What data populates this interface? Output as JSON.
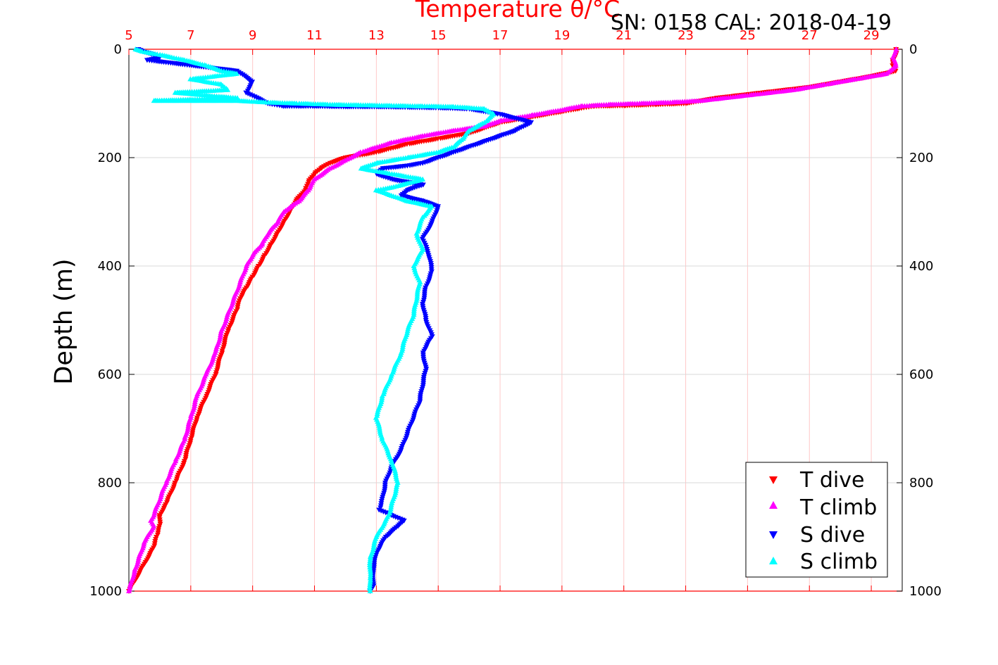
{
  "chart_data": {
    "type": "scatter",
    "title": "Temperature θ/°C",
    "caption": "SN: 0158  CAL: 2018-04-19",
    "ylabel": "Depth (m)",
    "xlim": [
      5,
      30
    ],
    "ylim": [
      0,
      1000
    ],
    "y_reversed": true,
    "x_ticks": [
      5,
      7,
      9,
      11,
      13,
      15,
      17,
      19,
      21,
      23,
      25,
      27,
      29
    ],
    "x_tick_labels": [
      "5",
      "7",
      "9",
      "11",
      "13",
      "15",
      "17",
      "19",
      "21",
      "23",
      "25",
      "27",
      "29"
    ],
    "y_ticks": [
      0,
      200,
      400,
      600,
      800,
      1000
    ],
    "y_tick_labels": [
      "0",
      "200",
      "400",
      "600",
      "800",
      "1000"
    ],
    "grid": true,
    "legend_position": "bottom-right",
    "colors": {
      "axis_top": "#ff0000",
      "grid": "#d9d9d9",
      "grid_x": "#ffc8c8",
      "T dive": "#ff0000",
      "T climb": "#ff00ff",
      "S dive": "#0000ff",
      "S climb": "#00ffff"
    },
    "series": [
      {
        "name": "T dive",
        "marker": "triangle-down",
        "color": "#ff0000",
        "x": [
          29.8,
          29.8,
          29.7,
          29.7,
          29.8,
          29.0,
          28.0,
          27.0,
          25.5,
          24.0,
          23.0,
          22.0,
          21.0,
          20.0,
          19.5,
          19.0,
          18.0,
          17.0,
          16.5,
          16.0,
          15.0,
          14.0,
          13.0,
          12.0,
          11.5,
          11.2,
          11.0,
          10.8,
          10.7,
          10.4,
          10.2,
          10.0,
          9.8,
          9.6,
          9.4,
          9.2,
          9.0,
          8.8,
          8.6,
          8.5,
          8.2,
          8.0,
          7.8,
          7.5,
          7.2,
          7.0,
          6.8,
          6.5,
          6.2,
          6.0,
          6.0,
          5.9,
          5.8,
          5.5,
          5.2,
          5.0
        ],
        "y": [
          0,
          10,
          20,
          30,
          40,
          50,
          60,
          70,
          80,
          90,
          100,
          102,
          104,
          105,
          110,
          115,
          125,
          135,
          145,
          155,
          165,
          175,
          190,
          200,
          210,
          220,
          230,
          245,
          260,
          280,
          300,
          320,
          340,
          360,
          380,
          400,
          420,
          440,
          460,
          480,
          520,
          560,
          600,
          640,
          680,
          720,
          760,
          800,
          840,
          860,
          880,
          900,
          920,
          950,
          980,
          1000
        ]
      },
      {
        "name": "T climb",
        "marker": "triangle-up",
        "color": "#ff00ff",
        "x": [
          29.8,
          29.7,
          29.8,
          29.5,
          28.5,
          27.5,
          26.5,
          25.0,
          23.5,
          22.5,
          21.5,
          20.5,
          19.6,
          19.0,
          18.0,
          17.0,
          16.5,
          15.5,
          14.5,
          13.5,
          12.5,
          12.0,
          11.5,
          11.0,
          10.8,
          10.5,
          10.0,
          9.8,
          9.5,
          9.3,
          9.0,
          8.8,
          8.6,
          8.4,
          8.2,
          8.0,
          7.8,
          7.5,
          7.2,
          7.0,
          6.8,
          6.5,
          6.2,
          6.0,
          5.8,
          5.7,
          5.8,
          5.5,
          5.2,
          5.0
        ],
        "y": [
          0,
          15,
          30,
          45,
          55,
          65,
          75,
          85,
          95,
          98,
          100,
          102,
          105,
          112,
          122,
          132,
          142,
          150,
          160,
          172,
          190,
          205,
          220,
          240,
          260,
          280,
          300,
          320,
          340,
          360,
          380,
          400,
          430,
          460,
          490,
          520,
          560,
          600,
          640,
          680,
          720,
          760,
          800,
          830,
          860,
          870,
          880,
          910,
          960,
          1000
        ]
      },
      {
        "name": "S dive",
        "marker": "triangle-down",
        "color": "#0000ff",
        "x": [
          5.3,
          5.5,
          5.8,
          6.0,
          5.6,
          8.5,
          9.0,
          8.8,
          9.5,
          10.0,
          11.0,
          12.0,
          13.0,
          14.0,
          15.0,
          16.0,
          17.0,
          18.0,
          17.5,
          17.0,
          16.5,
          16.0,
          15.5,
          15.0,
          14.5,
          14.0,
          13.2,
          13.0,
          13.5,
          14.5,
          14.0,
          13.8,
          14.5,
          15.0,
          14.8,
          14.5,
          14.7,
          14.8,
          14.6,
          14.5,
          14.6,
          14.8,
          14.5,
          14.6,
          14.5,
          14.4,
          14.2,
          14.0,
          13.8,
          13.5,
          13.3,
          13.2,
          13.1,
          13.5,
          13.9,
          13.7,
          13.3,
          13.0,
          12.9,
          12.9,
          12.8
        ],
        "y": [
          0,
          5,
          10,
          15,
          20,
          40,
          60,
          80,
          100,
          105,
          105,
          106,
          106,
          107,
          108,
          110,
          120,
          135,
          150,
          160,
          170,
          180,
          190,
          200,
          210,
          215,
          220,
          230,
          240,
          250,
          260,
          270,
          280,
          290,
          320,
          350,
          380,
          410,
          440,
          470,
          500,
          530,
          560,
          590,
          620,
          650,
          680,
          710,
          740,
          770,
          800,
          830,
          850,
          860,
          870,
          880,
          900,
          930,
          960,
          990,
          1000
        ]
      },
      {
        "name": "S climb",
        "marker": "triangle-up",
        "color": "#00ffff",
        "x": [
          5.2,
          5.5,
          6.0,
          6.8,
          7.5,
          8.0,
          8.5,
          7.0,
          8.0,
          8.2,
          6.5,
          7.5,
          8.5,
          5.8,
          7.0,
          8.5,
          9.5,
          10.5,
          11.5,
          12.5,
          13.5,
          14.5,
          15.5,
          16.5,
          16.8,
          16.5,
          16.0,
          15.8,
          15.5,
          15.0,
          14.0,
          13.0,
          12.5,
          13.5,
          14.5,
          13.5,
          13.0,
          13.5,
          14.0,
          14.8,
          14.5,
          14.3,
          14.5,
          14.2,
          14.4,
          14.3,
          14.2,
          14.0,
          13.8,
          13.5,
          13.2,
          13.0,
          13.2,
          13.5,
          13.7,
          13.4,
          13.0,
          12.8,
          12.8,
          12.8
        ],
        "y": [
          0,
          5,
          10,
          20,
          30,
          40,
          45,
          55,
          65,
          75,
          80,
          85,
          90,
          95,
          95,
          95,
          98,
          100,
          102,
          103,
          104,
          105,
          106,
          110,
          120,
          135,
          150,
          165,
          180,
          190,
          200,
          210,
          220,
          230,
          240,
          255,
          260,
          270,
          280,
          290,
          310,
          340,
          370,
          400,
          430,
          460,
          490,
          520,
          560,
          600,
          640,
          680,
          720,
          760,
          800,
          860,
          900,
          940,
          980,
          1000
        ]
      }
    ]
  }
}
